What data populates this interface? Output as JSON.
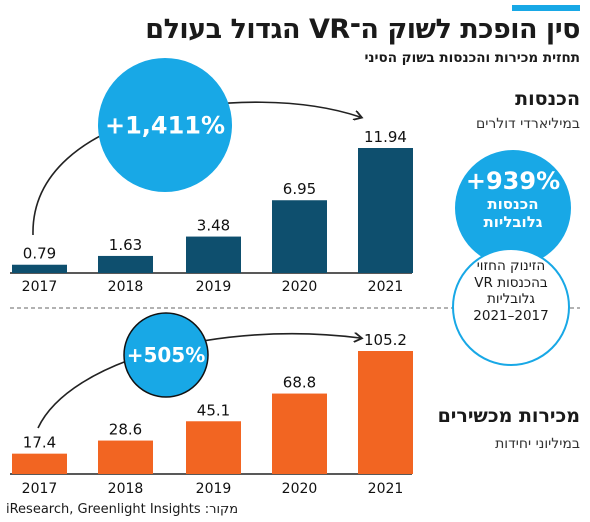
{
  "header": {
    "title": "סין הופכת לשוק ה־VR הגדול בעולם",
    "subtitle": "תחזית מכירות והכנסות בשוק הסיני",
    "accent_color": "#18a8e6"
  },
  "revenue_section": {
    "title": "הכנסות",
    "unit": "במיליארדי דולרים",
    "growth_label": "+1,411%"
  },
  "devices_section": {
    "title": "מכירות מכשירים",
    "unit": "במיליוני יחידות",
    "growth_label": "+505%"
  },
  "global_share": {
    "percent": "+939%",
    "label_line1": "הכנסות",
    "label_line2": "גלובליות",
    "note_text": "הזינוק החזוי בהכנסות VR גלובליות",
    "note_years": "2021–2017"
  },
  "source": {
    "label": "מקור:",
    "text": "iResearch, Greenlight Insights"
  },
  "chart_data": [
    {
      "type": "bar",
      "name": "revenue",
      "categories": [
        "2017",
        "2018",
        "2019",
        "2020",
        "2021"
      ],
      "values": [
        0.79,
        1.63,
        3.48,
        6.95,
        11.94
      ],
      "value_labels": [
        "0.79",
        "1.63",
        "3.48",
        "6.95",
        "11.94"
      ],
      "color": "#0e4f6e",
      "ylim": [
        0,
        11.94
      ]
    },
    {
      "type": "bar",
      "name": "devices",
      "categories": [
        "2017",
        "2018",
        "2019",
        "2020",
        "2021"
      ],
      "values": [
        17.4,
        28.6,
        45.1,
        68.8,
        105.2
      ],
      "value_labels": [
        "17.4",
        "28.6",
        "45.1",
        "68.8",
        "105.2"
      ],
      "color": "#f26522",
      "ylim": [
        0,
        105.2
      ]
    }
  ]
}
